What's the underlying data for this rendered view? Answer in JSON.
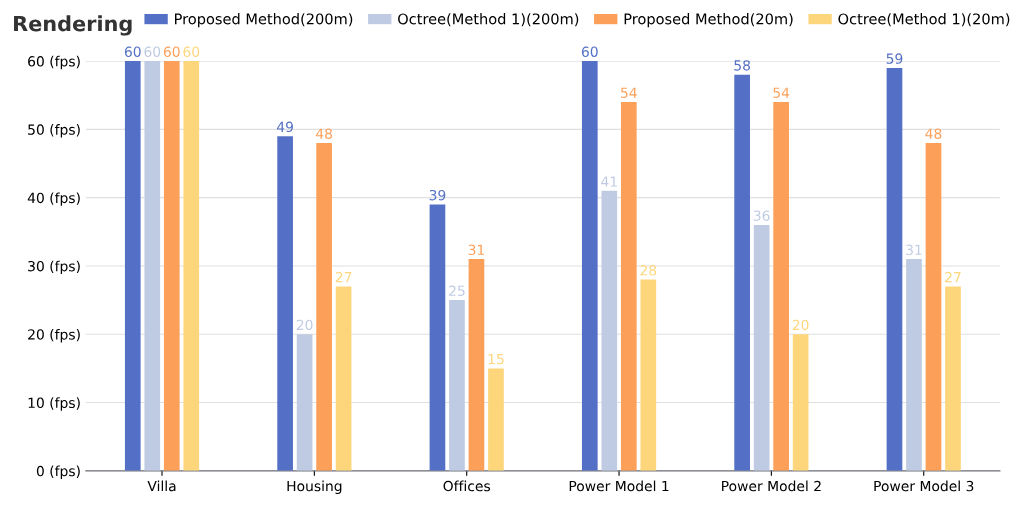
{
  "chart_data": {
    "type": "bar",
    "title": "Rendering",
    "categories": [
      "Villa",
      "Housing",
      "Offices",
      "Power Model 1",
      "Power Model 2",
      "Power Model 3"
    ],
    "series": [
      {
        "name": "Proposed Method(200m)",
        "color": "#5470c6",
        "values": [
          60,
          49,
          39,
          60,
          58,
          59
        ]
      },
      {
        "name": "Octree(Method 1)(200m)",
        "color": "#bfcbe3",
        "values": [
          60,
          20,
          25,
          41,
          36,
          31
        ]
      },
      {
        "name": "Proposed Method(20m)",
        "color": "#fc9f59",
        "values": [
          60,
          48,
          31,
          54,
          54,
          48
        ]
      },
      {
        "name": "Octree(Method 1)(20m)",
        "color": "#fdd67b",
        "values": [
          60,
          27,
          15,
          28,
          20,
          27
        ]
      }
    ],
    "ylim": [
      0,
      60
    ],
    "yticks": [
      {
        "value": 0,
        "label": "0 (fps)"
      },
      {
        "value": 10,
        "label": "10 (fps)"
      },
      {
        "value": 20,
        "label": "20 (fps)"
      },
      {
        "value": 30,
        "label": "30 (fps)"
      },
      {
        "value": 40,
        "label": "40 (fps)"
      },
      {
        "value": 50,
        "label": "50 (fps)"
      },
      {
        "value": 60,
        "label": "60 (fps)"
      }
    ],
    "grid": "y",
    "legend": "top",
    "data_labels": true
  }
}
